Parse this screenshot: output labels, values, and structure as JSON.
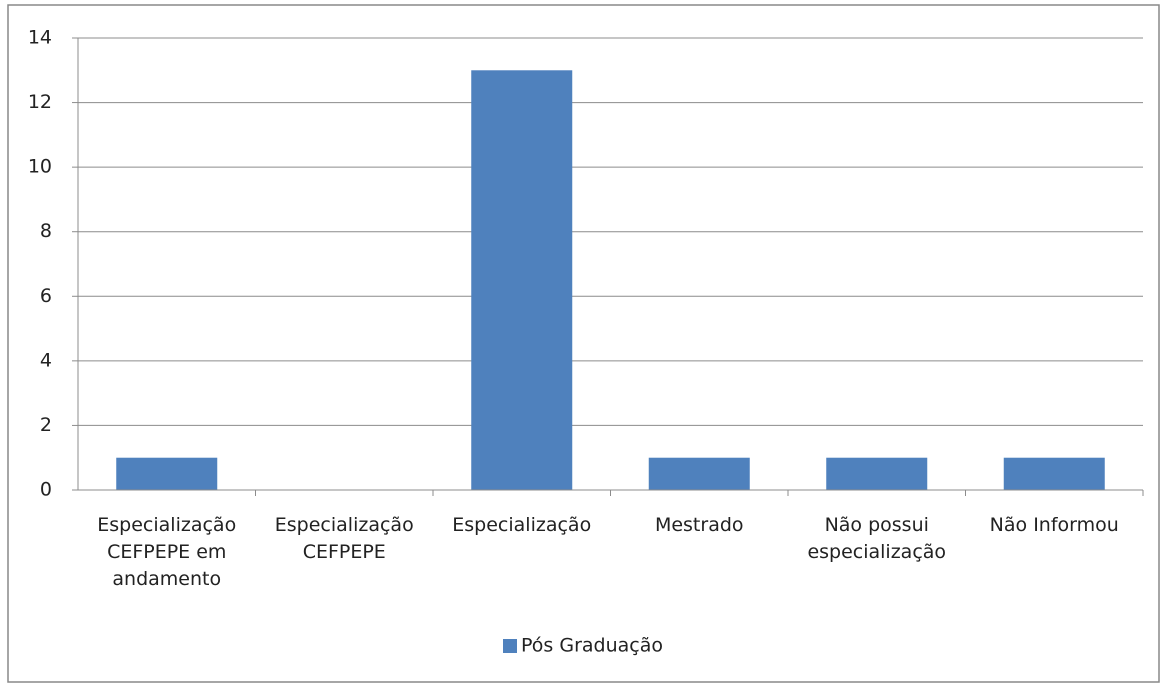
{
  "chart_data": {
    "type": "bar",
    "categories": [
      "Especialização CEFPEPE em andamento",
      "Especialização CEFPEPE",
      "Especialização",
      "Mestrado",
      "Não possui especialização",
      "Não Informou"
    ],
    "series": [
      {
        "name": "Pós Graduação",
        "color": "#4f81bd",
        "values": [
          1,
          0,
          13,
          1,
          1,
          1
        ]
      }
    ],
    "ylim": [
      0,
      14
    ],
    "yticks": [
      0,
      2,
      4,
      6,
      8,
      10,
      12,
      14
    ],
    "grid": true,
    "legend": "bottom"
  }
}
